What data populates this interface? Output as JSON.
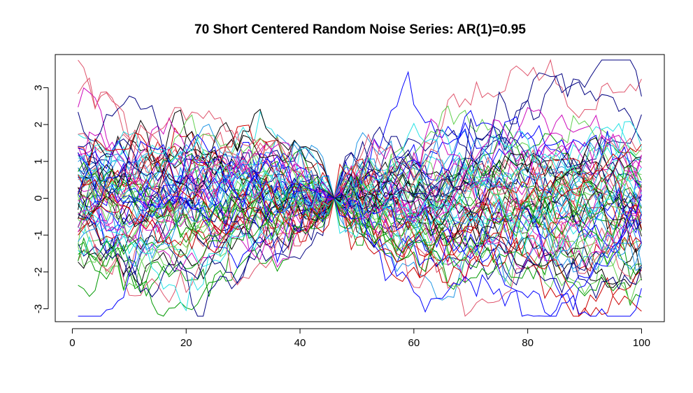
{
  "chart_data": {
    "type": "line",
    "title": "70 Short Centered Random Noise Series: AR(1)=0.95",
    "xlabel": "",
    "ylabel": "",
    "x": {
      "start": 1,
      "end": 100,
      "step": 1
    },
    "xlim": [
      -3,
      104
    ],
    "ylim": [
      -3.35,
      3.9
    ],
    "x_ticks": [
      0,
      20,
      40,
      60,
      80,
      100
    ],
    "y_ticks": [
      -3,
      -2,
      -1,
      0,
      1,
      2,
      3
    ],
    "x_tick_labels": [
      "0",
      "20",
      "40",
      "60",
      "80",
      "100"
    ],
    "y_tick_labels": [
      "-3",
      "-2",
      "-1",
      "0",
      "1",
      "2",
      "3"
    ],
    "grid": false,
    "legend": "none",
    "series_count": 70,
    "series_colors": [
      "#000000",
      "#DF536B",
      "#61D04F",
      "#2297E6",
      "#28E2E5",
      "#CD0BBC",
      "#000080",
      "#CC0000",
      "#009900",
      "#0000FF"
    ],
    "series_parameters": {
      "ar1": 0.95,
      "centered_at_x": 46
    }
  }
}
